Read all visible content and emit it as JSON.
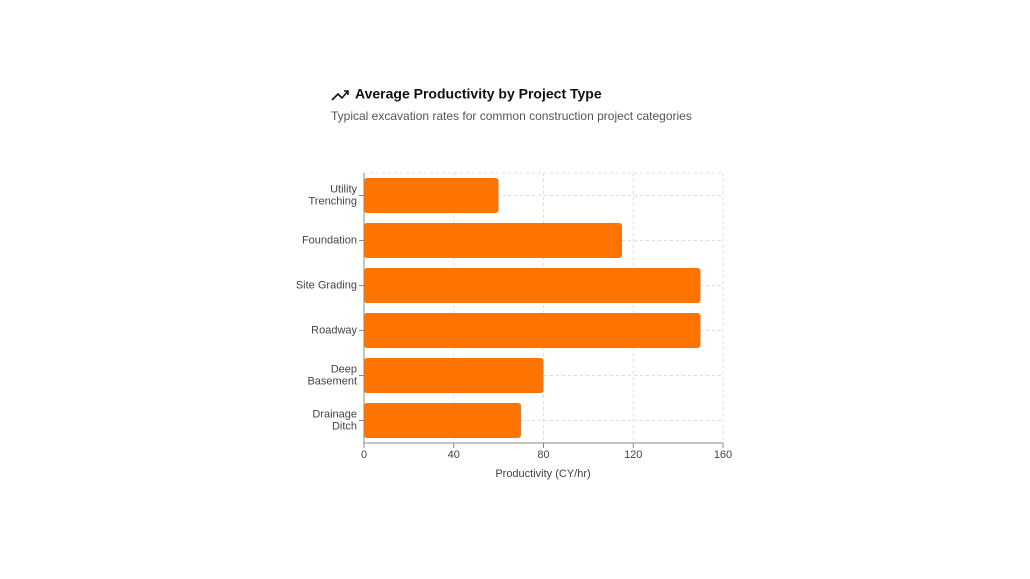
{
  "chart_data": {
    "type": "hbar",
    "title": "Average Productivity by Project Type",
    "subtitle": "Typical excavation rates for common construction project categories",
    "x_label": "Productivity (CY/hr)",
    "categories": [
      "Utility Trenching",
      "Foundation",
      "Site Grading",
      "Roadway",
      "Deep Basement",
      "Drainage Ditch"
    ],
    "values": [
      60,
      115,
      150,
      150,
      80,
      70
    ],
    "color": "#ff7300",
    "xlim": [
      0,
      160
    ],
    "xticks": [
      0,
      40,
      80,
      120,
      160
    ],
    "grid": true
  }
}
